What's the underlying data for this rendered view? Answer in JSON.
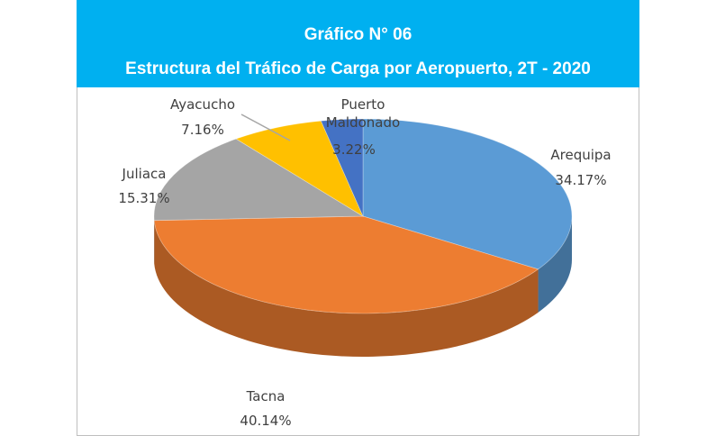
{
  "chart_data": {
    "type": "pie",
    "title": "Gráfico N° 06",
    "subtitle": "Estructura del Tráfico de Carga por Aeropuerto, 2T - 2020",
    "categories": [
      "Arequipa",
      "Tacna",
      "Juliaca",
      "Ayacucho",
      "Puerto Maldonado"
    ],
    "values": [
      34.17,
      40.14,
      15.31,
      7.16,
      3.22
    ],
    "value_labels": [
      "34.17%",
      "40.14%",
      "15.31%",
      "7.16%",
      "3.22%"
    ],
    "colors": [
      "#5b9bd5",
      "#ed7d31",
      "#a5a5a5",
      "#ffc000",
      "#4472c4"
    ]
  }
}
